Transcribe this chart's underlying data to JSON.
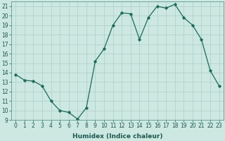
{
  "x": [
    0,
    1,
    2,
    3,
    4,
    5,
    6,
    7,
    8,
    9,
    10,
    11,
    12,
    13,
    14,
    15,
    16,
    17,
    18,
    19,
    20,
    21,
    22,
    23
  ],
  "y": [
    13.8,
    13.2,
    13.1,
    12.6,
    11.0,
    10.0,
    9.8,
    9.1,
    10.3,
    15.2,
    16.5,
    19.0,
    20.3,
    20.2,
    17.5,
    19.8,
    21.0,
    20.8,
    21.2,
    19.8,
    19.0,
    17.5,
    14.2,
    12.6
  ],
  "line_color": "#1a6b5a",
  "marker": "D",
  "marker_size": 2.2,
  "bg_color": "#cce8e0",
  "grid_color": "#aacfc8",
  "xlabel": "Humidex (Indice chaleur)",
  "ylim": [
    9,
    21.5
  ],
  "xlim": [
    -0.5,
    23.5
  ],
  "yticks": [
    9,
    10,
    11,
    12,
    13,
    14,
    15,
    16,
    17,
    18,
    19,
    20,
    21
  ],
  "xticks": [
    0,
    1,
    2,
    3,
    4,
    5,
    6,
    7,
    8,
    9,
    10,
    11,
    12,
    13,
    14,
    15,
    16,
    17,
    18,
    19,
    20,
    21,
    22,
    23
  ],
  "tick_fontsize": 5.5,
  "label_fontsize": 6.5
}
